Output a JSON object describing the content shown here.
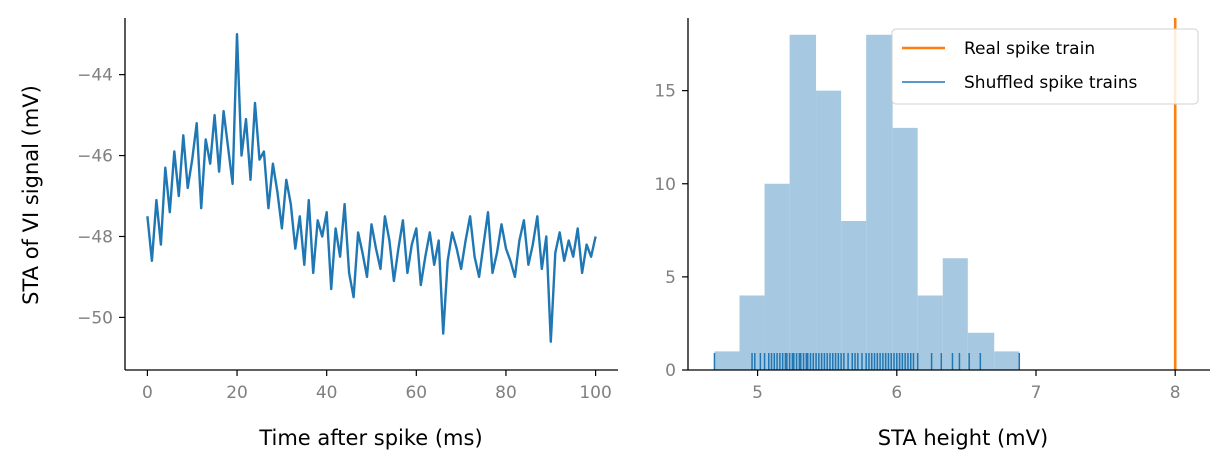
{
  "chart_data": [
    {
      "type": "line",
      "xlabel": "Time after spike (ms)",
      "ylabel": "STA of VI signal (mV)",
      "xlim": [
        -5,
        105
      ],
      "ylim": [
        -51.3,
        -42.6
      ],
      "xticks": [
        0,
        20,
        40,
        60,
        80,
        100
      ],
      "yticks": [
        -50,
        -48,
        -46,
        -44
      ],
      "xtick_labels": [
        "0",
        "20",
        "40",
        "60",
        "80",
        "100"
      ],
      "ytick_labels": [
        "−50",
        "−48",
        "−46",
        "−44"
      ],
      "grid": false,
      "color": "#1f77b4",
      "series": [
        {
          "x": [
            0,
            1,
            2,
            3,
            4,
            5,
            6,
            7,
            8,
            9,
            10,
            11,
            12,
            13,
            14,
            15,
            16,
            17,
            18,
            19,
            20,
            21,
            22,
            23,
            24,
            25,
            26,
            27,
            28,
            29,
            30,
            31,
            32,
            33,
            34,
            35,
            36,
            37,
            38,
            39,
            40,
            41,
            42,
            43,
            44,
            45,
            46,
            47,
            48,
            49,
            50,
            51,
            52,
            53,
            54,
            55,
            56,
            57,
            58,
            59,
            60,
            61,
            62,
            63,
            64,
            65,
            66,
            67,
            68,
            69,
            70,
            71,
            72,
            73,
            74,
            75,
            76,
            77,
            78,
            79,
            80,
            81,
            82,
            83,
            84,
            85,
            86,
            87,
            88,
            89,
            90,
            91,
            92,
            93,
            94,
            95,
            96,
            97,
            98,
            99,
            100
          ],
          "values": [
            -47.5,
            -48.6,
            -47.1,
            -48.2,
            -46.3,
            -47.4,
            -45.9,
            -47.0,
            -45.5,
            -46.8,
            -46.1,
            -45.2,
            -47.3,
            -45.6,
            -46.2,
            -45.0,
            -46.4,
            -44.9,
            -45.8,
            -46.7,
            -43.0,
            -46.0,
            -45.1,
            -46.6,
            -44.7,
            -46.1,
            -45.9,
            -47.3,
            -46.2,
            -46.9,
            -47.8,
            -46.6,
            -47.2,
            -48.3,
            -47.5,
            -48.7,
            -47.1,
            -48.9,
            -47.6,
            -48.0,
            -47.4,
            -49.3,
            -47.8,
            -48.5,
            -47.2,
            -48.9,
            -49.5,
            -47.9,
            -48.4,
            -49.0,
            -47.7,
            -48.3,
            -48.8,
            -47.5,
            -48.1,
            -49.1,
            -48.3,
            -47.6,
            -48.9,
            -48.2,
            -47.8,
            -49.2,
            -48.5,
            -47.9,
            -48.7,
            -48.1,
            -50.4,
            -48.6,
            -47.9,
            -48.3,
            -48.8,
            -48.1,
            -47.5,
            -48.5,
            -49.0,
            -48.2,
            -47.4,
            -48.9,
            -48.4,
            -47.7,
            -48.3,
            -48.6,
            -49.0,
            -48.1,
            -47.6,
            -48.7,
            -48.2,
            -47.5,
            -48.8,
            -48.0,
            -50.6,
            -48.4,
            -47.9,
            -48.6,
            -48.1,
            -48.5,
            -47.8,
            -48.9,
            -48.2,
            -48.5,
            -48.0
          ]
        }
      ]
    },
    {
      "type": "bar",
      "xlabel": "STA height (mV)",
      "ylabel": "",
      "xlim": [
        4.5,
        8.25
      ],
      "ylim": [
        0,
        18.9
      ],
      "xticks": [
        5,
        6,
        7,
        8
      ],
      "yticks": [
        0,
        5,
        10,
        15
      ],
      "xtick_labels": [
        "5",
        "6",
        "7",
        "8"
      ],
      "ytick_labels": [
        "0",
        "5",
        "10",
        "15"
      ],
      "grid": false,
      "bin_edges": [
        4.69,
        4.87,
        5.05,
        5.23,
        5.42,
        5.6,
        5.78,
        5.97,
        6.15,
        6.33,
        6.51,
        6.7,
        6.88
      ],
      "counts": [
        1,
        4,
        10,
        18,
        15,
        8,
        18,
        13,
        4,
        6,
        2,
        1
      ],
      "bar_color": "#a6c8e0",
      "rug": [
        4.69,
        4.96,
        4.98,
        5.02,
        5.05,
        5.08,
        5.1,
        5.12,
        5.14,
        5.16,
        5.18,
        5.2,
        5.21,
        5.23,
        5.25,
        5.26,
        5.28,
        5.3,
        5.31,
        5.33,
        5.35,
        5.36,
        5.38,
        5.4,
        5.42,
        5.44,
        5.46,
        5.48,
        5.5,
        5.52,
        5.54,
        5.56,
        5.58,
        5.6,
        5.62,
        5.65,
        5.68,
        5.7,
        5.72,
        5.75,
        5.78,
        5.8,
        5.82,
        5.84,
        5.86,
        5.88,
        5.9,
        5.92,
        5.94,
        5.96,
        5.98,
        6.0,
        6.02,
        6.04,
        6.06,
        6.08,
        6.1,
        6.12,
        6.15,
        6.25,
        6.32,
        6.4,
        6.45,
        6.52,
        6.6,
        6.88
      ],
      "rug_color": "#1f77b4",
      "real_value": 8.0,
      "real_color": "#ff7f0e",
      "legend": {
        "position": "top-right",
        "entries": [
          {
            "label": "Real spike train",
            "color": "#ff7f0e"
          },
          {
            "label": "Shuffled spike trains",
            "color": "#1f77b4"
          }
        ]
      }
    }
  ]
}
